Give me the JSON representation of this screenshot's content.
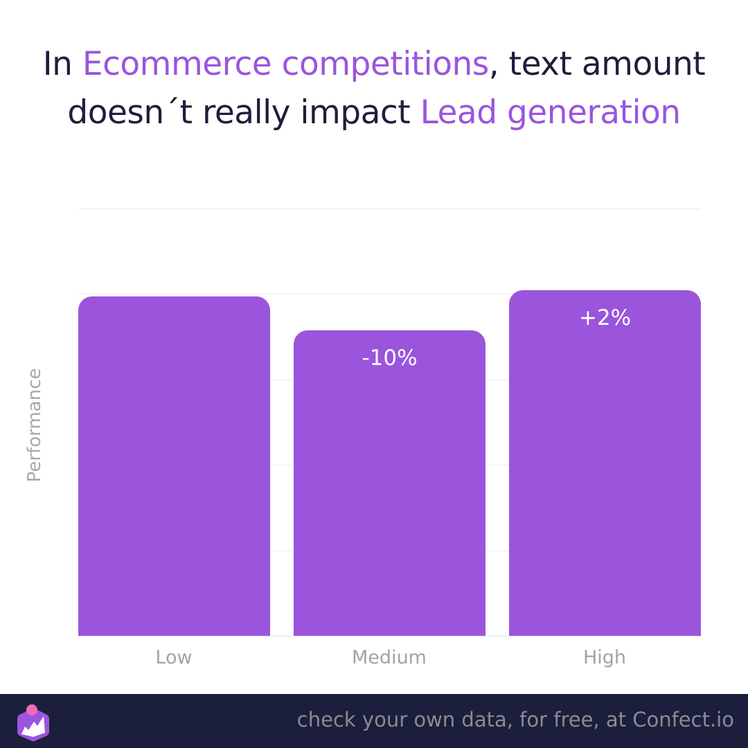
{
  "title": {
    "line1": [
      {
        "text": "In ",
        "highlight": false
      },
      {
        "text": "Ecommerce competitions",
        "highlight": true
      },
      {
        "text": ", text amount",
        "highlight": false
      }
    ],
    "line2": [
      {
        "text": "doesn´t really impact ",
        "highlight": false
      },
      {
        "text": "Lead generation",
        "highlight": true
      }
    ]
  },
  "colors": {
    "accent": "#9a55dc",
    "title_text": "#1c1f3b",
    "footer_bg": "#1c1f3b",
    "footer_text": "#8a8b95",
    "axis_text": "#a3a3a3",
    "logo_dot": "#f06bb5"
  },
  "chart_data": {
    "type": "bar",
    "title": "In Ecommerce competitions, text amount doesn´t really impact Lead generation",
    "xlabel": "",
    "ylabel": "Performance",
    "categories": [
      "Low",
      "Medium",
      "High"
    ],
    "values": [
      100,
      90,
      102
    ],
    "data_labels": [
      "",
      "-10%",
      "+2%"
    ],
    "ylim": [
      0,
      126
    ],
    "grid": true,
    "y_tick_labels_visible": false,
    "legend": null
  },
  "footer": {
    "text": "check your own data, for free, at Confect.io",
    "logo": "confect-logo-icon"
  }
}
